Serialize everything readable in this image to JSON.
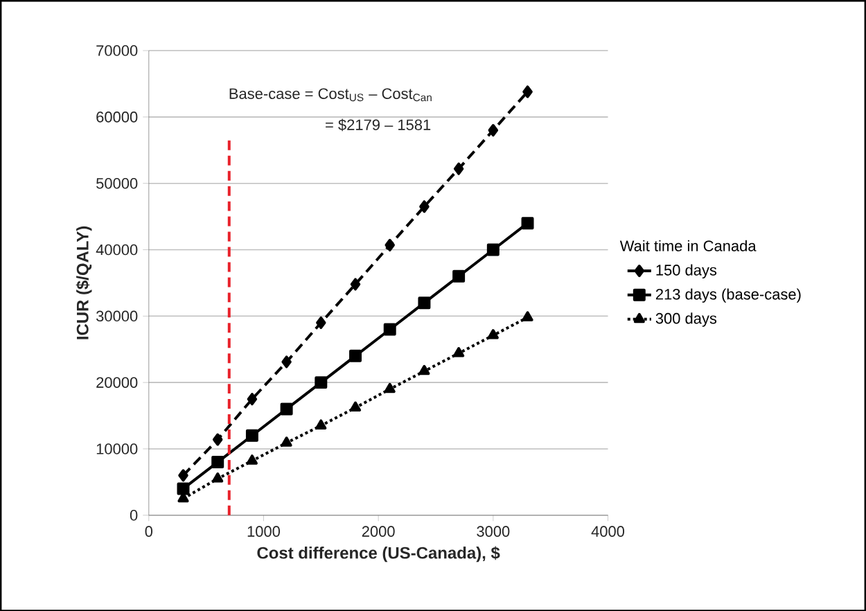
{
  "chart_data": {
    "type": "line",
    "xlabel": "Cost difference (US-Canada), $",
    "ylabel": "ICUR ($/QALY)",
    "legend_title": "Wait time in Canada",
    "x": [
      300,
      600,
      900,
      1200,
      1500,
      1800,
      2100,
      2400,
      2700,
      3000,
      3300
    ],
    "series": [
      {
        "name": "150 days",
        "color": "#000000",
        "marker": "diamond",
        "line_style": "dashed",
        "values": [
          6000,
          11400,
          17500,
          23100,
          29000,
          34800,
          40700,
          46500,
          52200,
          58000,
          63800
        ]
      },
      {
        "name": "213 days (base-case)",
        "color": "#000000",
        "marker": "square",
        "line_style": "solid",
        "values": [
          4000,
          8000,
          12000,
          16000,
          20000,
          24000,
          28000,
          32000,
          36000,
          40000,
          44000
        ]
      },
      {
        "name": "300 days",
        "color": "#000000",
        "marker": "triangle",
        "line_style": "dotted",
        "values": [
          2500,
          5500,
          8200,
          10900,
          13500,
          16200,
          19000,
          21700,
          24400,
          27100,
          29800
        ]
      }
    ],
    "xlim": [
      0,
      4000
    ],
    "xticks": [
      0,
      1000,
      2000,
      3000,
      4000
    ],
    "ylim": [
      0,
      70000
    ],
    "yticks": [
      0,
      10000,
      20000,
      30000,
      40000,
      50000,
      60000,
      70000
    ],
    "grid": "y",
    "legend": "right",
    "ref_lines": [
      {
        "axis": "x",
        "value": 700,
        "color": "#e8212a",
        "line_style": "dashed"
      }
    ],
    "annotations": [
      "Base-case = Cost$_{US}$ – Cost$_{Can}$",
      "= $2179 – 1581"
    ]
  }
}
